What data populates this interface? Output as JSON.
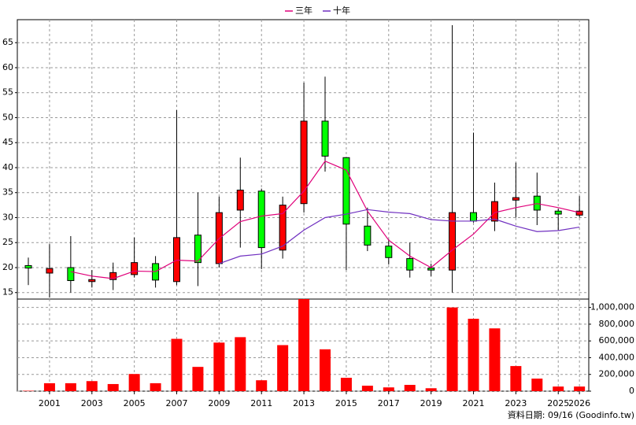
{
  "chart_data": [
    {
      "type": "candlestick",
      "x": [
        2000,
        2001,
        2002,
        2003,
        2004,
        2005,
        2006,
        2007,
        2008,
        2009,
        2010,
        2011,
        2012,
        2013,
        2014,
        2015,
        2016,
        2017,
        2018,
        2019,
        2020,
        2021,
        2022,
        2023,
        2024,
        2025,
        2026
      ],
      "open": [
        20.4,
        18.9,
        20.0,
        17.2,
        17.6,
        18.6,
        20.8,
        17.2,
        26.5,
        20.8,
        31.5,
        35.3,
        23.5,
        32.8,
        49.3,
        42.0,
        28.3,
        24.3,
        21.8,
        19.9,
        19.5,
        31.0,
        29.3,
        33.5,
        34.3,
        31.3,
        30.5
      ],
      "high": [
        22.0,
        24.7,
        26.3,
        19.5,
        21.0,
        26.0,
        22.3,
        51.5,
        35.0,
        34.2,
        42.0,
        35.8,
        34.2,
        57.0,
        58.2,
        42.0,
        32.0,
        25.7,
        25.0,
        20.8,
        68.5,
        47.0,
        37.0,
        41.0,
        39.0,
        31.8,
        34.3
      ],
      "low": [
        16.5,
        14.0,
        15.0,
        16.0,
        15.5,
        18.0,
        16.0,
        16.5,
        16.3,
        20.0,
        24.0,
        19.7,
        21.8,
        31.0,
        39.2,
        19.5,
        23.3,
        20.6,
        18.0,
        18.3,
        15.0,
        29.0,
        27.3,
        30.0,
        28.5,
        27.5,
        30.0
      ],
      "close": [
        19.9,
        19.8,
        17.4,
        17.6,
        19.0,
        21.0,
        17.5,
        26.0,
        21.0,
        31.0,
        35.5,
        24.0,
        32.5,
        49.3,
        42.3,
        28.7,
        24.5,
        22.0,
        19.5,
        19.5,
        31.0,
        29.3,
        33.2,
        34.0,
        31.5,
        30.7,
        31.3
      ],
      "up_color": "#ff0000",
      "down_color": "#00ff00",
      "series": [
        {
          "name": "三年",
          "color": "#e0007a",
          "values": [
            null,
            null,
            19.2,
            18.3,
            17.8,
            19.3,
            19.2,
            21.5,
            21.3,
            25.8,
            29.2,
            30.3,
            30.8,
            35.3,
            41.3,
            39.5,
            31.3,
            25.5,
            22.3,
            20.0,
            23.5,
            26.7,
            31.0,
            32.0,
            32.8,
            32.0,
            31.0
          ]
        },
        {
          "name": "十年",
          "color": "#7030c0",
          "values": [
            null,
            null,
            null,
            null,
            null,
            null,
            null,
            null,
            null,
            20.8,
            22.3,
            22.7,
            24.3,
            27.5,
            30.0,
            30.7,
            31.6,
            31.1,
            30.8,
            29.6,
            29.3,
            29.3,
            29.7,
            28.3,
            27.2,
            27.4,
            28.1
          ]
        }
      ],
      "xlim": [
        1999.48,
        2026.44
      ],
      "xticks": [
        2001,
        2003,
        2005,
        2007,
        2009,
        2011,
        2013,
        2015,
        2017,
        2019,
        2021,
        2023,
        2025,
        2026
      ],
      "ylim": [
        13.7,
        69.6
      ],
      "yticks": [
        15,
        20,
        25,
        30,
        35,
        40,
        45,
        50,
        55,
        60,
        65
      ],
      "grid": true
    },
    {
      "type": "bar",
      "x": [
        2000,
        2001,
        2002,
        2003,
        2004,
        2005,
        2006,
        2007,
        2008,
        2009,
        2010,
        2011,
        2012,
        2013,
        2014,
        2015,
        2016,
        2017,
        2018,
        2019,
        2020,
        2021,
        2022,
        2023,
        2024,
        2025,
        2026
      ],
      "values": [
        5000,
        95000,
        95000,
        120000,
        85000,
        205000,
        95000,
        625000,
        290000,
        580000,
        645000,
        130000,
        550000,
        1100000,
        500000,
        160000,
        65000,
        45000,
        75000,
        35000,
        1000000,
        865000,
        750000,
        300000,
        150000,
        55000,
        55000
      ],
      "color": "#ff0000",
      "xlim": [
        1999.48,
        2026.44
      ],
      "xticks": [
        2001,
        2003,
        2005,
        2007,
        2009,
        2011,
        2013,
        2015,
        2017,
        2019,
        2021,
        2023,
        2025,
        2026
      ],
      "ylim": [
        0,
        1100000
      ],
      "yticks": [
        0,
        {
          "value": 200000,
          "label": "200,000"
        },
        {
          "value": 400000,
          "label": "400,000"
        },
        {
          "value": 600000,
          "label": "600,000"
        },
        {
          "value": 800000,
          "label": "800,000"
        },
        {
          "value": 1000000,
          "label": "1,000,000"
        }
      ],
      "grid": true
    }
  ],
  "footer": "資料日期: 09/16 (Goodinfo.tw)"
}
